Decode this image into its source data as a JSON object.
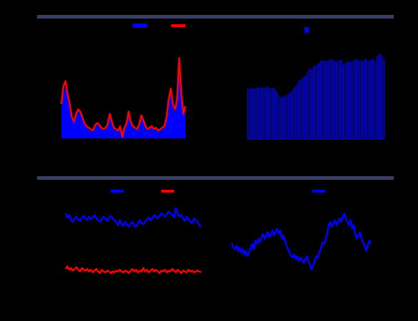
{
  "colors": {
    "background": "#000000",
    "header_bar": "#3a3f66",
    "blue": "#0000ff",
    "red": "#ff0000"
  },
  "chart_data": [
    {
      "type": "area",
      "title": "",
      "x": [
        0,
        1,
        2,
        3,
        4,
        5,
        6,
        7,
        8,
        9,
        10,
        11,
        12,
        13,
        14,
        15,
        16,
        17,
        18,
        19,
        20,
        21,
        22,
        23,
        24,
        25,
        26,
        27,
        28,
        29,
        30,
        31,
        32,
        33,
        34,
        35,
        36,
        37,
        38,
        39,
        40,
        41,
        42,
        43,
        44,
        45,
        46,
        47,
        48,
        49,
        50,
        51,
        52,
        53,
        54,
        55,
        56,
        57,
        58,
        59
      ],
      "xlim": [
        0,
        59
      ],
      "ylim": [
        0,
        125
      ],
      "series": [
        {
          "name": "",
          "color": "#0000ff",
          "style": "area",
          "values": [
            40,
            58,
            70,
            55,
            42,
            25,
            20,
            30,
            35,
            32,
            25,
            18,
            15,
            12,
            10,
            8,
            15,
            18,
            16,
            12,
            10,
            12,
            16,
            30,
            20,
            12,
            10,
            8,
            14,
            6,
            12,
            18,
            30,
            20,
            15,
            12,
            10,
            16,
            28,
            22,
            15,
            10,
            12,
            15,
            10,
            12,
            8,
            10,
            12,
            14,
            25,
            45,
            60,
            40,
            35,
            45,
            100,
            55,
            30,
            35
          ]
        },
        {
          "name": "",
          "color": "#ff0000",
          "style": "line",
          "values": [
            45,
            68,
            75,
            58,
            45,
            28,
            22,
            32,
            38,
            35,
            28,
            20,
            16,
            14,
            12,
            10,
            17,
            20,
            18,
            14,
            12,
            14,
            18,
            32,
            22,
            14,
            12,
            10,
            16,
            2,
            14,
            20,
            35,
            22,
            16,
            14,
            12,
            18,
            30,
            24,
            16,
            12,
            14,
            16,
            12,
            14,
            10,
            12,
            14,
            16,
            28,
            50,
            65,
            45,
            38,
            50,
            105,
            60,
            32,
            42
          ]
        }
      ]
    },
    {
      "type": "bar",
      "title": "",
      "ylim": [
        0,
        180
      ],
      "series": [
        {
          "name": "",
          "color": "#0000ff",
          "values": [
            95,
            96,
            94,
            97,
            95,
            96,
            98,
            95,
            97,
            96,
            98,
            99,
            97,
            95,
            96,
            97,
            90,
            85,
            80,
            78,
            82,
            80,
            84,
            86,
            88,
            92,
            96,
            100,
            105,
            110,
            112,
            115,
            118,
            120,
            128,
            132,
            130,
            135,
            138,
            140,
            142,
            145,
            148,
            147,
            146,
            145,
            149,
            150,
            148,
            146,
            145,
            147,
            148,
            149,
            140,
            142,
            145,
            144,
            146,
            145,
            148,
            150,
            149,
            147,
            148,
            146,
            149,
            150,
            148,
            147,
            149,
            150,
            145,
            155,
            158,
            160,
            155,
            150
          ]
        }
      ]
    },
    {
      "type": "line",
      "title": "",
      "ylim": [
        0,
        100
      ],
      "series": [
        {
          "name": "",
          "color": "#0000ff",
          "values": [
            80,
            75,
            78,
            72,
            70,
            74,
            76,
            73,
            71,
            75,
            77,
            74,
            72,
            76,
            73,
            75,
            78,
            74,
            72,
            70,
            73,
            76,
            74,
            71,
            75,
            77,
            74,
            72,
            70,
            66,
            72,
            68,
            65,
            70,
            67,
            64,
            68,
            70,
            66,
            64,
            68,
            72,
            69,
            67,
            70,
            73,
            75,
            72,
            74,
            78,
            76,
            74,
            77,
            80,
            78,
            76,
            79,
            82,
            80,
            78,
            75,
            86,
            80,
            76,
            78,
            74,
            71,
            76,
            73,
            70,
            68,
            74,
            72,
            70,
            66,
            64
          ]
        },
        {
          "name": "",
          "color": "#ff0000",
          "values": [
            15,
            18,
            14,
            16,
            13,
            15,
            17,
            14,
            12,
            16,
            14,
            13,
            15,
            12,
            14,
            11,
            13,
            15,
            12,
            10,
            14,
            12,
            11,
            13,
            12,
            10,
            12,
            11,
            13,
            12,
            14,
            12,
            11,
            13,
            12,
            10,
            13,
            15,
            12,
            14,
            11,
            13,
            12,
            16,
            12,
            14,
            11,
            13,
            15,
            12,
            14,
            12,
            10,
            13,
            12,
            14,
            11,
            13,
            12,
            15,
            13,
            11,
            14,
            12,
            10,
            13,
            12,
            11,
            14,
            12,
            13,
            11,
            12,
            13,
            12,
            11
          ]
        }
      ]
    },
    {
      "type": "line",
      "title": "",
      "ylim": [
        0,
        100
      ],
      "series": [
        {
          "name": "",
          "color": "#0000ff",
          "values": [
            45,
            40,
            38,
            42,
            36,
            40,
            34,
            38,
            32,
            36,
            30,
            34,
            40,
            44,
            38,
            48,
            44,
            50,
            46,
            52,
            56,
            50,
            54,
            58,
            52,
            56,
            60,
            54,
            58,
            62,
            56,
            60,
            50,
            54,
            48,
            42,
            38,
            34,
            30,
            28,
            32,
            26,
            30,
            24,
            28,
            26,
            22,
            26,
            30,
            24,
            20,
            14,
            18,
            24,
            30,
            28,
            34,
            40,
            46,
            44,
            50,
            56,
            66,
            70,
            64,
            68,
            72,
            66,
            70,
            74,
            70,
            76,
            80,
            74,
            70,
            66,
            72,
            62,
            66,
            56,
            50,
            54,
            58,
            50,
            46,
            42,
            36,
            42,
            48,
            44
          ]
        }
      ]
    }
  ]
}
